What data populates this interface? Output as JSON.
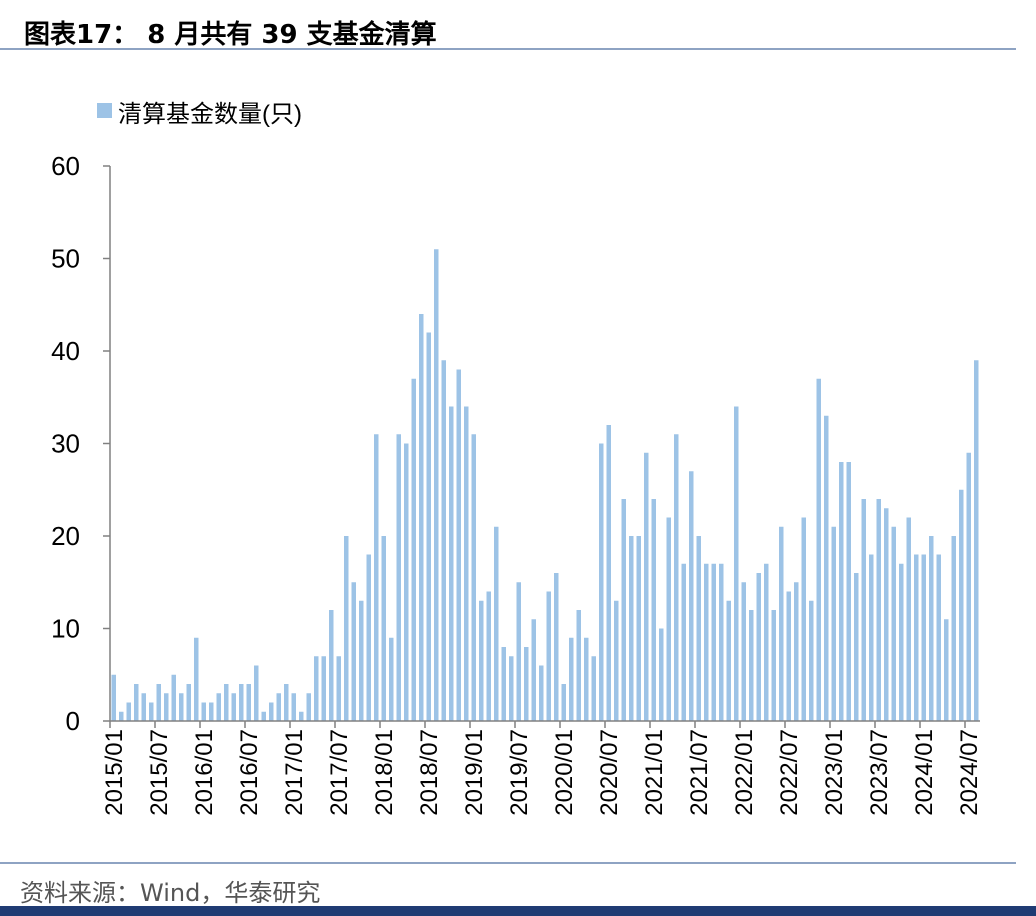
{
  "header": {
    "title": "图表17： 8 月共有 39 支基金清算"
  },
  "footer": {
    "source": "资料来源：Wind，华泰研究"
  },
  "chart_data": {
    "type": "bar",
    "legend": {
      "label": "清算基金数量(只)",
      "position": "top-left"
    },
    "color": "#9dc3e6",
    "ylim": [
      0,
      60
    ],
    "yticks": [
      0,
      10,
      20,
      30,
      40,
      50,
      60
    ],
    "xtick_labels": [
      "2015/01",
      "2015/07",
      "2016/01",
      "2016/07",
      "2017/01",
      "2017/07",
      "2018/01",
      "2018/07",
      "2019/01",
      "2019/07",
      "2020/01",
      "2020/07",
      "2021/01",
      "2021/07",
      "2022/01",
      "2022/07",
      "2023/01",
      "2023/07",
      "2024/01",
      "2024/07"
    ],
    "start": "2015/01",
    "values": [
      5,
      1,
      2,
      4,
      3,
      2,
      4,
      3,
      5,
      3,
      4,
      9,
      2,
      2,
      3,
      4,
      3,
      4,
      4,
      6,
      1,
      2,
      3,
      4,
      3,
      1,
      3,
      7,
      7,
      12,
      7,
      20,
      15,
      13,
      18,
      31,
      20,
      9,
      31,
      30,
      37,
      44,
      42,
      51,
      39,
      34,
      38,
      34,
      31,
      13,
      14,
      21,
      8,
      7,
      15,
      8,
      11,
      6,
      14,
      16,
      4,
      9,
      12,
      9,
      7,
      30,
      32,
      13,
      24,
      20,
      20,
      29,
      24,
      10,
      22,
      31,
      17,
      27,
      20,
      17,
      17,
      17,
      13,
      34,
      15,
      12,
      16,
      17,
      12,
      21,
      14,
      15,
      22,
      13,
      37,
      33,
      21,
      28,
      28,
      16,
      24,
      18,
      24,
      23,
      21,
      17,
      22,
      18,
      18,
      20,
      18,
      11,
      20,
      25,
      29,
      39
    ]
  }
}
